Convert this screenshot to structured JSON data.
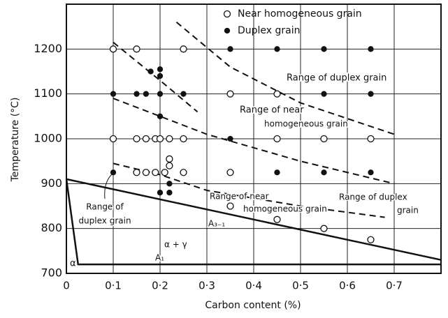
{
  "chart_data": {
    "type": "scatter",
    "xlabel": "Carbon content (%)",
    "ylabel": "Temperature (°C)",
    "xlim": [
      0,
      0.8
    ],
    "ylim": [
      700,
      1300
    ],
    "xticks": [
      0,
      {
        "value": 0.1,
        "label": "0·1"
      },
      {
        "value": 0.2,
        "label": "0·2"
      },
      {
        "value": 0.3,
        "label": "0·3"
      },
      {
        "value": 0.4,
        "label": "0·4"
      },
      {
        "value": 0.5,
        "label": "0·5"
      },
      {
        "value": 0.6,
        "label": "0·6"
      },
      {
        "value": 0.7,
        "label": "0·7"
      }
    ],
    "yticks": [
      700,
      800,
      900,
      1000,
      1100,
      1200
    ],
    "grid": true,
    "legend": "upper right",
    "series": [
      {
        "name": "Near homogeneous grain",
        "marker": "open",
        "color": "#111",
        "x": [
          0.1,
          0.15,
          0.25,
          0.35,
          0.45,
          0.1,
          0.15,
          0.17,
          0.19,
          0.2,
          0.22,
          0.25,
          0.45,
          0.55,
          0.65,
          0.22,
          0.22,
          0.15,
          0.17,
          0.19,
          0.21,
          0.25,
          0.35,
          0.35,
          0.45,
          0.55,
          0.65
        ],
        "values": [
          1200,
          1200,
          1200,
          1100,
          1100,
          1000,
          1000,
          1000,
          1000,
          1000,
          1000,
          1000,
          1000,
          1000,
          1000,
          955,
          940,
          925,
          925,
          925,
          925,
          925,
          925,
          850,
          820,
          800,
          775
        ]
      },
      {
        "name": "Duplex grain",
        "marker": "filled",
        "color": "#111",
        "x": [
          0.35,
          0.45,
          0.55,
          0.65,
          0.18,
          0.2,
          0.2,
          0.1,
          0.15,
          0.17,
          0.2,
          0.25,
          0.55,
          0.65,
          0.2,
          0.35,
          0.1,
          0.45,
          0.55,
          0.65,
          0.22,
          0.2,
          0.22
        ],
        "values": [
          1200,
          1200,
          1200,
          1200,
          1150,
          1155,
          1140,
          1100,
          1100,
          1100,
          1100,
          1100,
          1100,
          1100,
          1050,
          1000,
          925,
          925,
          925,
          925,
          900,
          880,
          880
        ]
      }
    ],
    "lines": [
      {
        "style": "solid",
        "x": [
          0,
          0.8
        ],
        "y": [
          910,
          730
        ]
      },
      {
        "style": "solid",
        "x": [
          0,
          0.025,
          0.8
        ],
        "y": [
          910,
          720,
          720
        ]
      },
      {
        "style": "dashed",
        "x": [
          0.235,
          0.35,
          0.5,
          0.7
        ],
        "y": [
          1260,
          1160,
          1080,
          1010
        ]
      },
      {
        "style": "dashed",
        "x": [
          0.1,
          0.2,
          0.28
        ],
        "y": [
          1215,
          1130,
          1060
        ]
      },
      {
        "style": "dashed",
        "x": [
          0.1,
          0.3,
          0.5,
          0.7
        ],
        "y": [
          1090,
          1010,
          950,
          900
        ]
      },
      {
        "style": "dashed",
        "x": [
          0.1,
          0.2,
          0.3,
          0.5,
          0.68
        ],
        "y": [
          945,
          920,
          885,
          850,
          825
        ]
      }
    ],
    "annotations": [
      "Range of duplex grain",
      "Range of near",
      "homogeneous grain",
      "Range of near",
      "homogeneous grain",
      "Range of duplex",
      "grain",
      "Range of",
      "duplex grain",
      "A₃₋₁",
      "α + γ",
      "A₁",
      "α"
    ]
  }
}
